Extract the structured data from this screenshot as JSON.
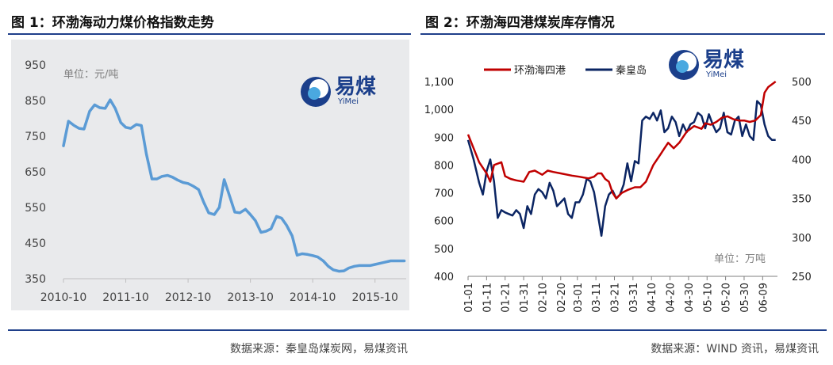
{
  "figure1": {
    "title": "图 1：环渤海动力煤价格指数走势",
    "source": "数据来源：秦皇岛煤炭网，易煤资讯",
    "unit_label": "单位：元/吨",
    "logo": {
      "main": "易煤",
      "sub": "YiMei"
    },
    "colors": {
      "line": "#5b9bd5",
      "background": "#e9eaec"
    }
  },
  "figure2": {
    "title": "图 2：环渤海四港煤炭库存情况",
    "source": "数据来源：WIND 资讯，易煤资讯",
    "unit_label": "单位：万吨",
    "logo": {
      "main": "易煤",
      "sub": "YiMei"
    },
    "colors": {
      "series1": "#c00000",
      "series2": "#0b2563"
    }
  },
  "chart_data": [
    {
      "type": "line",
      "title": "",
      "xlabel": "",
      "ylabel": "",
      "ylim": [
        350,
        950
      ],
      "y_ticks": [
        950,
        850,
        750,
        650,
        550,
        450,
        350
      ],
      "x_tick_labels": [
        "2010-10",
        "2011-10",
        "2012-10",
        "2013-10",
        "2014-10",
        "2015-10"
      ],
      "x_tick_positions": [
        2010.75,
        2011.75,
        2012.75,
        2013.75,
        2014.75,
        2015.75
      ],
      "xlim": [
        2010.75,
        2016.25
      ],
      "grid": false,
      "series": [
        {
          "x": [
            2010.75,
            2010.83,
            2010.92,
            2011.0,
            2011.08,
            2011.17,
            2011.25,
            2011.33,
            2011.42,
            2011.5,
            2011.58,
            2011.67,
            2011.75,
            2011.83,
            2011.92,
            2012.0,
            2012.08,
            2012.17,
            2012.25,
            2012.33,
            2012.42,
            2012.5,
            2012.58,
            2012.67,
            2012.75,
            2012.83,
            2012.92,
            2013.0,
            2013.08,
            2013.17,
            2013.25,
            2013.33,
            2013.42,
            2013.5,
            2013.58,
            2013.67,
            2013.75,
            2013.83,
            2013.92,
            2014.0,
            2014.08,
            2014.17,
            2014.25,
            2014.33,
            2014.42,
            2014.5,
            2014.58,
            2014.67,
            2014.75,
            2014.83,
            2014.92,
            2015.0,
            2015.08,
            2015.17,
            2015.25,
            2015.33,
            2015.42,
            2015.5,
            2015.58,
            2015.67,
            2015.75,
            2015.83,
            2015.92,
            2016.0,
            2016.08,
            2016.17,
            2016.22
          ],
          "values": [
            723,
            792,
            780,
            772,
            770,
            820,
            838,
            830,
            828,
            852,
            828,
            788,
            775,
            772,
            783,
            780,
            700,
            630,
            630,
            637,
            640,
            635,
            627,
            620,
            617,
            610,
            600,
            565,
            535,
            530,
            550,
            628,
            580,
            537,
            535,
            545,
            530,
            513,
            480,
            483,
            490,
            525,
            520,
            500,
            470,
            416,
            420,
            418,
            415,
            411,
            400,
            385,
            375,
            371,
            372,
            380,
            385,
            387,
            387,
            387,
            390,
            393,
            397,
            400,
            400,
            400,
            400
          ]
        }
      ]
    },
    {
      "type": "line",
      "title": "",
      "xlabel": "",
      "ylabel": "",
      "ylim": [
        400,
        1100
      ],
      "y_ticks": [
        1100,
        1000,
        900,
        800,
        700,
        600,
        500,
        400
      ],
      "y_tick_labels": [
        "1,100",
        "1,000",
        "900",
        "800",
        "700",
        "600",
        "500",
        "400"
      ],
      "y2lim": [
        250,
        500
      ],
      "y2_ticks": [
        500,
        450,
        400,
        350,
        300,
        250
      ],
      "x_tick_labels": [
        "01-01",
        "01-11",
        "01-21",
        "01-31",
        "02-10",
        "02-20",
        "03-01",
        "03-11",
        "03-21",
        "03-31",
        "04-10",
        "04-20",
        "04-30",
        "05-10",
        "05-20",
        "05-30",
        "06-09"
      ],
      "x_tick_days": [
        0,
        10,
        20,
        30,
        40,
        50,
        59,
        69,
        79,
        89,
        99,
        109,
        119,
        129,
        139,
        149,
        159
      ],
      "xlim": [
        0,
        167
      ],
      "legend": "top",
      "grid": false,
      "series": [
        {
          "name": "环渤海四港",
          "axis": "left",
          "x": [
            0,
            3,
            6,
            10,
            12,
            14,
            18,
            20,
            23,
            26,
            30,
            33,
            36,
            40,
            43,
            46,
            50,
            56,
            60,
            65,
            68,
            70,
            72,
            74,
            76,
            78,
            80,
            83,
            86,
            90,
            93,
            96,
            100,
            104,
            106,
            108,
            111,
            114,
            118,
            122,
            126,
            128,
            131,
            134,
            137,
            140,
            143,
            146,
            149,
            152,
            155,
            158,
            160,
            162,
            164,
            166
          ],
          "values": [
            910,
            860,
            810,
            770,
            740,
            800,
            810,
            760,
            750,
            745,
            740,
            775,
            780,
            765,
            780,
            775,
            770,
            762,
            758,
            752,
            758,
            770,
            770,
            750,
            740,
            700,
            680,
            700,
            710,
            720,
            720,
            740,
            800,
            840,
            860,
            880,
            860,
            880,
            920,
            940,
            930,
            950,
            945,
            955,
            970,
            975,
            965,
            960,
            960,
            955,
            960,
            980,
            1060,
            1080,
            1090,
            1100
          ]
        },
        {
          "name": "秦皇岛",
          "axis": "right",
          "x": [
            0,
            3,
            6,
            8,
            10,
            12,
            14,
            16,
            18,
            20,
            22,
            24,
            26,
            28,
            30,
            32,
            34,
            36,
            38,
            40,
            42,
            44,
            46,
            48,
            50,
            52,
            54,
            56,
            58,
            60,
            62,
            64,
            66,
            68,
            70,
            72,
            74,
            76,
            78,
            80,
            82,
            84,
            86,
            88,
            90,
            92,
            94,
            96,
            98,
            100,
            102,
            104,
            106,
            108,
            110,
            112,
            114,
            116,
            118,
            120,
            122,
            124,
            126,
            128,
            130,
            132,
            134,
            136,
            138,
            140,
            142,
            144,
            146,
            148,
            150,
            152,
            154,
            156,
            158,
            160,
            162,
            164,
            166
          ],
          "values": [
            425,
            400,
            370,
            355,
            385,
            400,
            372,
            325,
            335,
            332,
            330,
            328,
            335,
            330,
            312,
            340,
            330,
            355,
            362,
            358,
            350,
            370,
            360,
            340,
            345,
            350,
            330,
            325,
            345,
            345,
            355,
            375,
            372,
            358,
            330,
            302,
            340,
            355,
            360,
            350,
            355,
            368,
            395,
            372,
            398,
            395,
            450,
            455,
            452,
            460,
            450,
            463,
            435,
            440,
            455,
            448,
            430,
            445,
            435,
            445,
            448,
            460,
            456,
            440,
            458,
            445,
            435,
            440,
            460,
            435,
            432,
            450,
            455,
            430,
            445,
            430,
            425,
            475,
            470,
            445,
            430,
            425,
            425
          ]
        }
      ]
    }
  ]
}
